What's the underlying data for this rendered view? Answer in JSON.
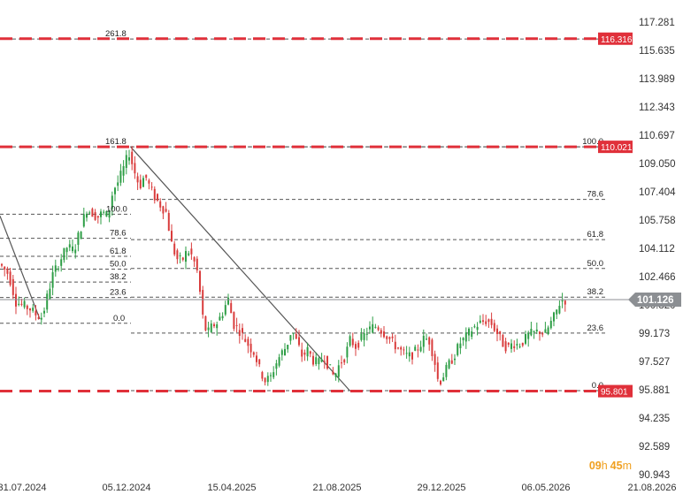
{
  "chart_data": {
    "type": "candlestick",
    "y_ticks": [
      "117.281",
      "115.635",
      "113.989",
      "112.343",
      "110.697",
      "109.050",
      "107.404",
      "105.758",
      "104.112",
      "102.466",
      "100.820",
      "99.173",
      "97.527",
      "95.881",
      "94.235",
      "92.589",
      "90.943"
    ],
    "ylim": [
      90.943,
      117.281
    ],
    "x_ticks": [
      "31.07.2024",
      "05.12.2024",
      "15.04.2025",
      "21.08.2025",
      "29.12.2025",
      "06.05.2026",
      "21.08.2026"
    ],
    "current_price": "101.126",
    "timer": {
      "hours": "09",
      "h": "h",
      "minutes": "45",
      "m": "m"
    },
    "price_tags": [
      {
        "label": "116.316",
        "value": 116.316
      },
      {
        "label": "110.021",
        "value": 110.021
      },
      {
        "label": "95.801",
        "value": 95.801
      }
    ],
    "fib_levels": [
      {
        "label": "261.8",
        "value": 116.3,
        "x1": 0,
        "x2": 690,
        "lx": 119,
        "anchor": "start"
      },
      {
        "label": "161.8",
        "value": 110.02,
        "x1": 0,
        "x2": 690,
        "lx": 119,
        "anchor": "start"
      },
      {
        "label": "100.0",
        "value": 106.1,
        "x1": 0,
        "x2": 148,
        "lx": 120,
        "anchor": "start"
      },
      {
        "label": "78.6",
        "value": 104.7,
        "x1": 0,
        "x2": 148,
        "lx": 124,
        "anchor": "start"
      },
      {
        "label": "61.8",
        "value": 103.65,
        "x1": 0,
        "x2": 148,
        "lx": 124,
        "anchor": "start"
      },
      {
        "label": "50.0",
        "value": 102.9,
        "x1": 0,
        "x2": 148,
        "lx": 124,
        "anchor": "start"
      },
      {
        "label": "38.2",
        "value": 102.15,
        "x1": 0,
        "x2": 148,
        "lx": 124,
        "anchor": "start"
      },
      {
        "label": "23.6",
        "value": 101.25,
        "x1": 0,
        "x2": 148,
        "lx": 124,
        "anchor": "start"
      },
      {
        "label": "0.0",
        "value": 99.75,
        "x1": 0,
        "x2": 148,
        "lx": 128,
        "anchor": "start"
      },
      {
        "label": "100.0",
        "value": 110.02,
        "x1": 148,
        "x2": 685,
        "lx": 682,
        "anchor": "end"
      },
      {
        "label": "78.6",
        "value": 106.96,
        "x1": 148,
        "x2": 685,
        "lx": 682,
        "anchor": "end"
      },
      {
        "label": "61.8",
        "value": 104.62,
        "x1": 148,
        "x2": 685,
        "lx": 682,
        "anchor": "end"
      },
      {
        "label": "50.0",
        "value": 102.94,
        "x1": 148,
        "x2": 685,
        "lx": 682,
        "anchor": "end"
      },
      {
        "label": "38.2",
        "value": 101.27,
        "x1": 148,
        "x2": 685,
        "lx": 682,
        "anchor": "end"
      },
      {
        "label": "23.6",
        "value": 99.18,
        "x1": 148,
        "x2": 685,
        "lx": 682,
        "anchor": "end"
      },
      {
        "label": "0.0",
        "value": 95.83,
        "x1": 148,
        "x2": 685,
        "lx": 682,
        "anchor": "end"
      }
    ],
    "trendlines": [
      {
        "x1": 0,
        "y1": 106.0,
        "x2": 45,
        "y2": 100.0
      },
      {
        "x1": 148,
        "y1": 110.0,
        "x2": 395,
        "y2": 95.85
      }
    ],
    "series": [
      {
        "x": 2,
        "y": 103.2
      },
      {
        "x": 12,
        "y": 102.6
      },
      {
        "x": 20,
        "y": 101.0
      },
      {
        "x": 28,
        "y": 100.8
      },
      {
        "x": 36,
        "y": 100.6
      },
      {
        "x": 44,
        "y": 100.2
      },
      {
        "x": 50,
        "y": 100.1
      },
      {
        "x": 56,
        "y": 101.4
      },
      {
        "x": 62,
        "y": 102.6
      },
      {
        "x": 70,
        "y": 103.4
      },
      {
        "x": 78,
        "y": 104.2
      },
      {
        "x": 86,
        "y": 104.0
      },
      {
        "x": 94,
        "y": 105.4
      },
      {
        "x": 100,
        "y": 106.4
      },
      {
        "x": 106,
        "y": 106.2
      },
      {
        "x": 112,
        "y": 105.9
      },
      {
        "x": 118,
        "y": 106.2
      },
      {
        "x": 124,
        "y": 106.0
      },
      {
        "x": 130,
        "y": 107.5
      },
      {
        "x": 136,
        "y": 108.0
      },
      {
        "x": 142,
        "y": 108.8
      },
      {
        "x": 148,
        "y": 109.7
      },
      {
        "x": 154,
        "y": 108.6
      },
      {
        "x": 160,
        "y": 107.7
      },
      {
        "x": 166,
        "y": 108.4
      },
      {
        "x": 172,
        "y": 107.6
      },
      {
        "x": 178,
        "y": 107.0
      },
      {
        "x": 184,
        "y": 106.6
      },
      {
        "x": 190,
        "y": 106.2
      },
      {
        "x": 196,
        "y": 104.4
      },
      {
        "x": 202,
        "y": 103.5
      },
      {
        "x": 208,
        "y": 103.4
      },
      {
        "x": 214,
        "y": 104.0
      },
      {
        "x": 220,
        "y": 103.6
      },
      {
        "x": 226,
        "y": 102.6
      },
      {
        "x": 231,
        "y": 100.2
      },
      {
        "x": 236,
        "y": 99.1
      },
      {
        "x": 242,
        "y": 99.6
      },
      {
        "x": 248,
        "y": 99.8
      },
      {
        "x": 254,
        "y": 100.4
      },
      {
        "x": 260,
        "y": 101.2
      },
      {
        "x": 266,
        "y": 99.7
      },
      {
        "x": 272,
        "y": 99.4
      },
      {
        "x": 278,
        "y": 98.9
      },
      {
        "x": 284,
        "y": 98.4
      },
      {
        "x": 290,
        "y": 98.0
      },
      {
        "x": 296,
        "y": 97.0
      },
      {
        "x": 302,
        "y": 96.4
      },
      {
        "x": 308,
        "y": 96.6
      },
      {
        "x": 314,
        "y": 97.4
      },
      {
        "x": 320,
        "y": 98.0
      },
      {
        "x": 326,
        "y": 98.4
      },
      {
        "x": 332,
        "y": 99.4
      },
      {
        "x": 338,
        "y": 98.6
      },
      {
        "x": 344,
        "y": 97.8
      },
      {
        "x": 350,
        "y": 98.2
      },
      {
        "x": 356,
        "y": 97.6
      },
      {
        "x": 362,
        "y": 97.4
      },
      {
        "x": 368,
        "y": 97.9
      },
      {
        "x": 374,
        "y": 97.2
      },
      {
        "x": 380,
        "y": 96.6
      },
      {
        "x": 386,
        "y": 97.4
      },
      {
        "x": 392,
        "y": 97.8
      },
      {
        "x": 398,
        "y": 98.8
      },
      {
        "x": 404,
        "y": 98.4
      },
      {
        "x": 410,
        "y": 98.8
      },
      {
        "x": 416,
        "y": 99.2
      },
      {
        "x": 422,
        "y": 99.5
      },
      {
        "x": 428,
        "y": 99.6
      },
      {
        "x": 434,
        "y": 99.3
      },
      {
        "x": 440,
        "y": 99.0
      },
      {
        "x": 446,
        "y": 98.6
      },
      {
        "x": 452,
        "y": 98.3
      },
      {
        "x": 458,
        "y": 98.0
      },
      {
        "x": 464,
        "y": 97.8
      },
      {
        "x": 470,
        "y": 98.0
      },
      {
        "x": 476,
        "y": 98.4
      },
      {
        "x": 482,
        "y": 98.9
      },
      {
        "x": 488,
        "y": 98.7
      },
      {
        "x": 494,
        "y": 97.4
      },
      {
        "x": 498,
        "y": 96.2
      },
      {
        "x": 504,
        "y": 96.8
      },
      {
        "x": 510,
        "y": 97.4
      },
      {
        "x": 516,
        "y": 97.9
      },
      {
        "x": 522,
        "y": 98.6
      },
      {
        "x": 528,
        "y": 98.9
      },
      {
        "x": 534,
        "y": 99.3
      },
      {
        "x": 540,
        "y": 99.6
      },
      {
        "x": 546,
        "y": 99.8
      },
      {
        "x": 552,
        "y": 99.9
      },
      {
        "x": 558,
        "y": 99.7
      },
      {
        "x": 564,
        "y": 99.2
      },
      {
        "x": 570,
        "y": 98.6
      },
      {
        "x": 576,
        "y": 98.3
      },
      {
        "x": 582,
        "y": 98.6
      },
      {
        "x": 588,
        "y": 98.5
      },
      {
        "x": 594,
        "y": 98.7
      },
      {
        "x": 600,
        "y": 99.1
      },
      {
        "x": 606,
        "y": 99.2
      },
      {
        "x": 612,
        "y": 99.3
      },
      {
        "x": 618,
        "y": 99.1
      },
      {
        "x": 624,
        "y": 99.7
      },
      {
        "x": 630,
        "y": 100.3
      },
      {
        "x": 636,
        "y": 101.1
      }
    ],
    "colors": {
      "up": "#2e9e46",
      "down": "#d93c3c",
      "dash_red": "#e0303a",
      "tag_red": "#e0303a",
      "current_tag": "#8c8f93",
      "timer": "#f0a020",
      "fib_line": "#555555",
      "trend": "#555555"
    }
  }
}
